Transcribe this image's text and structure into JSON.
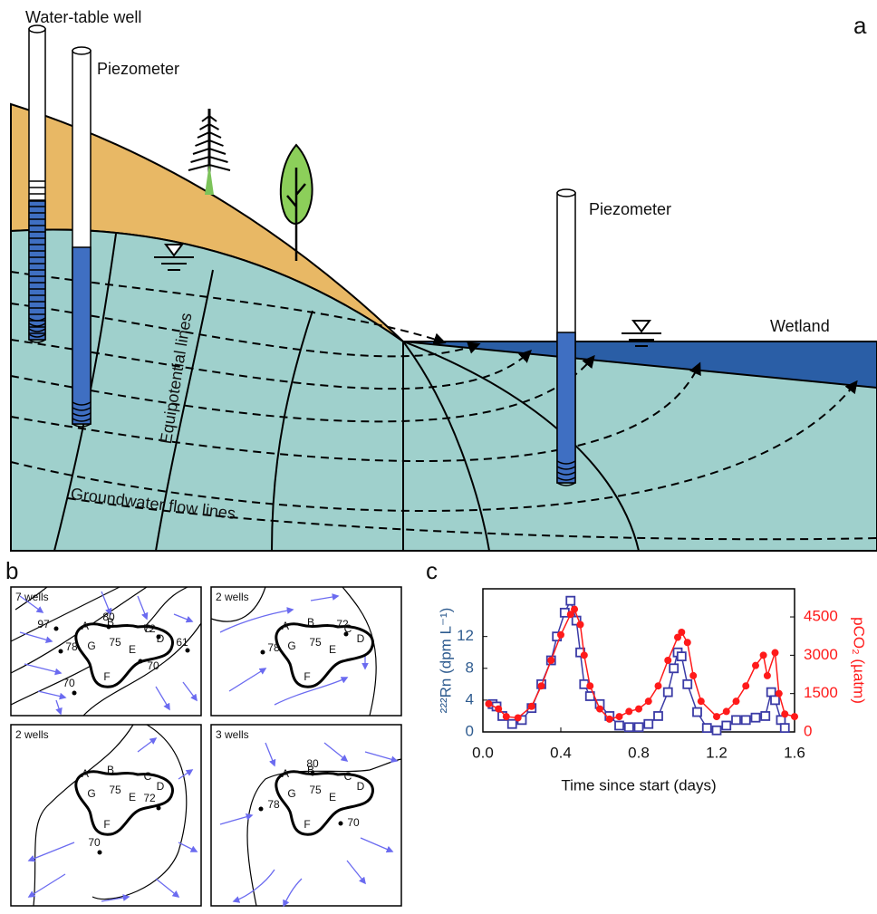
{
  "panel_a": {
    "label": "a",
    "well_label": "Water-table well",
    "piezometer_labels": [
      "Piezometer",
      "Piezometer"
    ],
    "wetland_label": "Wetland",
    "equipotential_label": "Equipotential lines",
    "flow_label": "Groundwater flow lines"
  },
  "panel_b": {
    "label": "b",
    "zone_labels": [
      "A",
      "B",
      "C",
      "D",
      "E",
      "F",
      "G",
      "75"
    ],
    "maps": [
      {
        "title": "7 wells",
        "wells": [
          97,
          80,
          72,
          78,
          61,
          70,
          70
        ]
      },
      {
        "title": "2 wells",
        "wells": [
          72,
          78
        ]
      },
      {
        "title": "2 wells",
        "wells": [
          72,
          70
        ]
      },
      {
        "title": "3 wells",
        "wells": [
          80,
          78,
          70
        ]
      }
    ]
  },
  "chart_data": {
    "type": "line",
    "panel_label": "c",
    "xlabel": "Time since start (days)",
    "ylabel": "²²²Rn (dpm L⁻¹)",
    "y2label": "pCO₂ (µatm)",
    "xlim": [
      0,
      1.6
    ],
    "xticks": [
      {
        "value": 0,
        "label": "0.0"
      },
      0.4,
      0.8,
      1.2,
      1.6
    ],
    "ylim": [
      0,
      18
    ],
    "yticks": [
      0,
      4,
      8,
      12
    ],
    "y2lim": [
      0,
      5600
    ],
    "y2ticks": [
      0,
      1500,
      3000,
      4500
    ],
    "series": [
      {
        "color": "#3b3ba6",
        "marker": "square",
        "x": [
          0.05,
          0.07,
          0.1,
          0.15,
          0.2,
          0.25,
          0.3,
          0.35,
          0.38,
          0.42,
          0.45,
          0.48,
          0.5,
          0.52,
          0.55,
          0.6,
          0.65,
          0.7,
          0.75,
          0.8,
          0.85,
          0.9,
          0.95,
          0.98,
          1.0,
          1.02,
          1.05,
          1.1,
          1.15,
          1.2,
          1.25,
          1.3,
          1.35,
          1.4,
          1.45,
          1.48,
          1.5,
          1.53,
          1.55
        ],
        "values": [
          3.5,
          3.2,
          2,
          1,
          1.5,
          3,
          6,
          9,
          12,
          15,
          16.5,
          14,
          10,
          6,
          4.5,
          3.5,
          2,
          0.8,
          0.6,
          0.6,
          1,
          2,
          5,
          8,
          10,
          9.5,
          6,
          2.5,
          0.5,
          0.2,
          0.8,
          1.5,
          1.5,
          1.8,
          2,
          5,
          4,
          1.5,
          0.5
        ]
      },
      {
        "color": "#ff1a1a",
        "marker": "circle",
        "axis": "y2",
        "x": [
          0.03,
          0.08,
          0.12,
          0.18,
          0.25,
          0.3,
          0.35,
          0.4,
          0.45,
          0.47,
          0.5,
          0.52,
          0.55,
          0.6,
          0.65,
          0.7,
          0.75,
          0.8,
          0.85,
          0.9,
          0.95,
          1.0,
          1.02,
          1.05,
          1.08,
          1.12,
          1.2,
          1.25,
          1.3,
          1.35,
          1.4,
          1.44,
          1.46,
          1.5,
          1.52,
          1.55,
          1.6
        ],
        "values": [
          1100,
          900,
          600,
          550,
          1000,
          1800,
          2800,
          3800,
          4600,
          4800,
          4200,
          3000,
          1800,
          900,
          500,
          600,
          800,
          900,
          1200,
          1800,
          2800,
          3700,
          3900,
          3500,
          2200,
          1200,
          600,
          800,
          1200,
          1800,
          2600,
          3000,
          2200,
          3100,
          1500,
          700,
          600
        ]
      }
    ]
  }
}
